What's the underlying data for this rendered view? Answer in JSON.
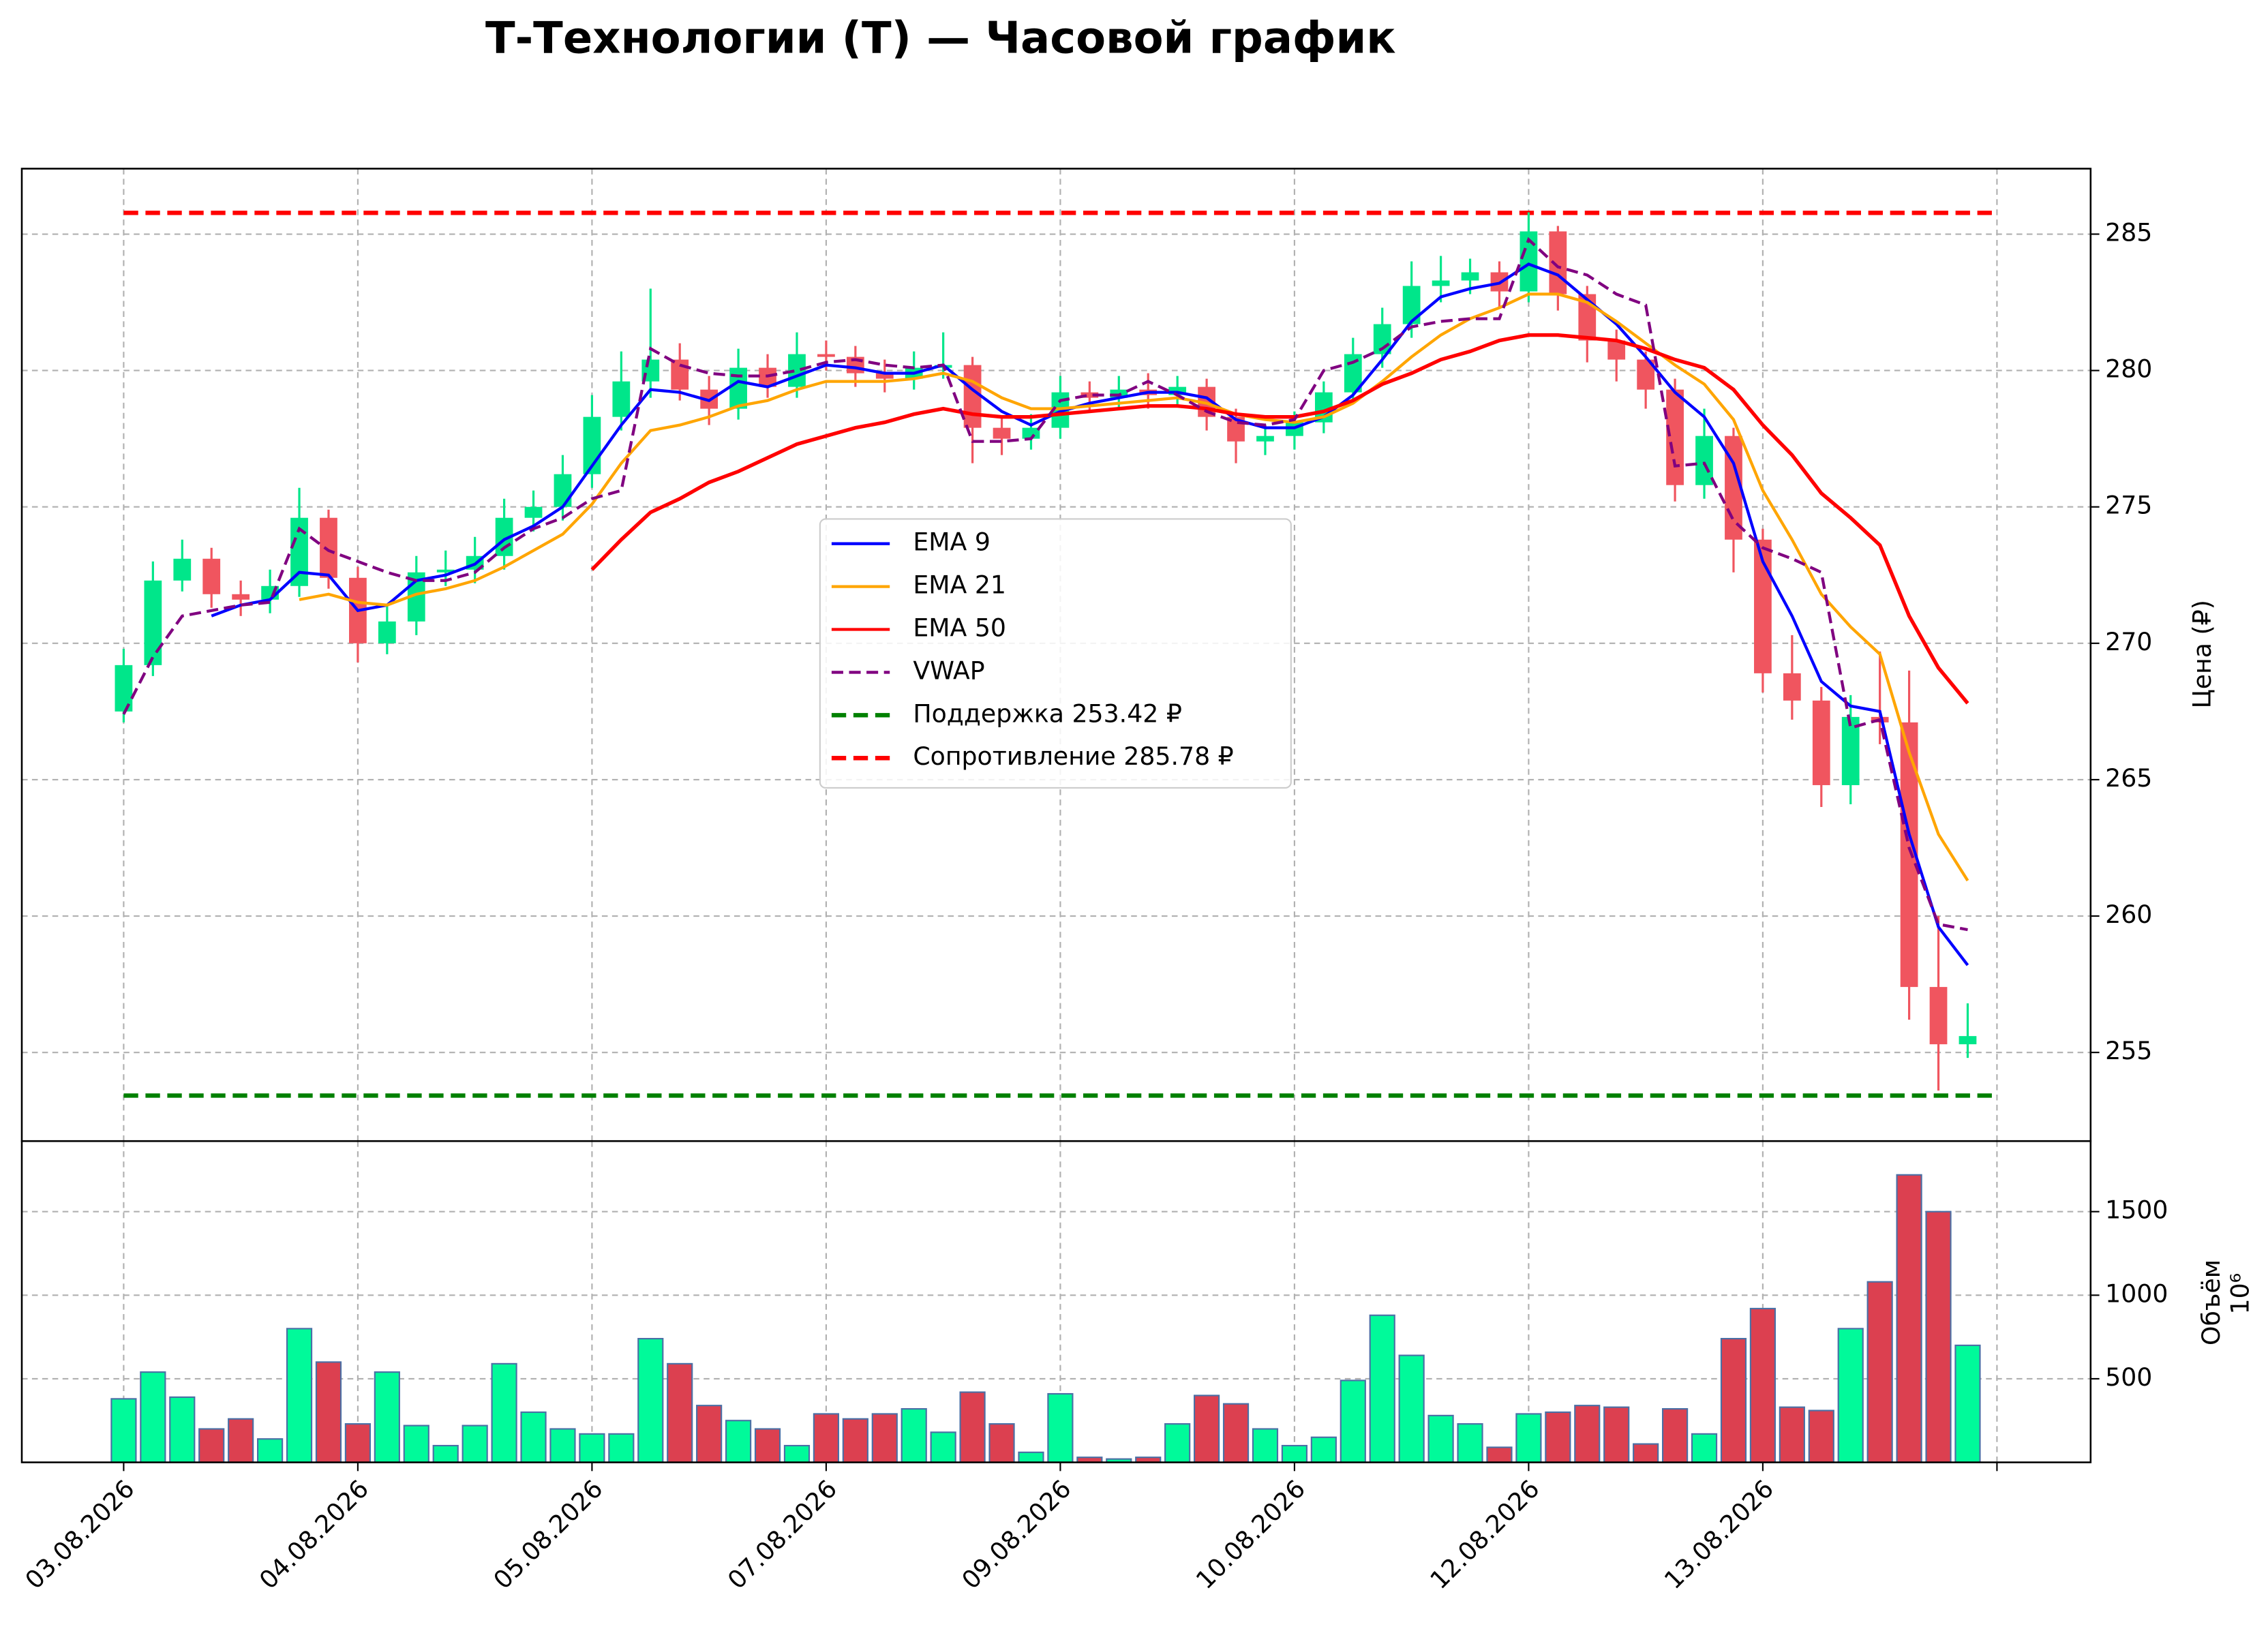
{
  "chart_data": [
    {
      "type": "candlestick",
      "title": "Т-Технологии (T) — Часовой график",
      "ylabel": "Цена (₽)",
      "up_color": "#00e68a",
      "down_color": "#f0555f",
      "grid": true,
      "legend": "center",
      "xlim": [
        -0.435,
        8.4
      ],
      "ylim": [
        251.75,
        287.4
      ],
      "yticks": [
        255,
        260,
        265,
        270,
        275,
        280,
        285
      ],
      "xticks": [
        {
          "value": 0,
          "label": "03.08.2026"
        },
        {
          "value": 1,
          "label": "04.08.2026"
        },
        {
          "value": 2,
          "label": "05.08.2026"
        },
        {
          "value": 3,
          "label": "07.08.2026"
        },
        {
          "value": 4,
          "label": "09.08.2026"
        },
        {
          "value": 5,
          "label": "10.08.2026"
        },
        {
          "value": 6,
          "label": "12.08.2026"
        },
        {
          "value": 7,
          "label": "13.08.2026"
        },
        {
          "value": 8,
          "label": null
        }
      ],
      "x": [
        0,
        0.125,
        0.25,
        0.375,
        0.5,
        0.625,
        0.75,
        0.875,
        1,
        1.125,
        1.25,
        1.375,
        1.5,
        1.625,
        1.75,
        1.875,
        2,
        2.125,
        2.25,
        2.375,
        2.5,
        2.625,
        2.75,
        2.875,
        3,
        3.125,
        3.25,
        3.375,
        3.5,
        3.625,
        3.75,
        3.875,
        4,
        4.125,
        4.25,
        4.375,
        4.5,
        4.625,
        4.75,
        4.875,
        5,
        5.125,
        5.25,
        5.375,
        5.5,
        5.625,
        5.75,
        5.875,
        6,
        6.125,
        6.25,
        6.375,
        6.5,
        6.625,
        6.75,
        6.875,
        7,
        7.125,
        7.25,
        7.375,
        7.5,
        7.625,
        7.75,
        7.875
      ],
      "open": [
        267.5,
        269.2,
        272.3,
        273.1,
        271.8,
        271.6,
        272.1,
        274.6,
        272.4,
        270.0,
        270.8,
        272.6,
        272.7,
        273.2,
        274.6,
        275.0,
        276.2,
        278.3,
        279.6,
        280.4,
        279.3,
        278.6,
        280.1,
        279.4,
        280.6,
        280.5,
        279.9,
        279.7,
        280.1,
        280.2,
        277.9,
        277.5,
        277.9,
        279.2,
        279.0,
        279.3,
        279.1,
        279.4,
        278.3,
        277.4,
        277.6,
        278.1,
        279.2,
        280.6,
        281.7,
        283.1,
        283.3,
        283.6,
        282.9,
        285.1,
        282.8,
        281.1,
        280.4,
        279.3,
        275.8,
        277.6,
        273.8,
        268.9,
        267.9,
        264.8,
        267.3,
        267.1,
        257.4,
        255.3
      ],
      "high": [
        269.8,
        273.0,
        273.8,
        273.5,
        272.3,
        272.7,
        275.7,
        274.9,
        272.8,
        271.4,
        273.2,
        273.4,
        273.9,
        275.3,
        275.6,
        276.9,
        279.1,
        280.7,
        283.0,
        281.0,
        279.8,
        280.8,
        280.6,
        281.4,
        281.1,
        280.9,
        280.4,
        280.7,
        281.4,
        280.5,
        278.3,
        278.4,
        279.8,
        279.6,
        279.8,
        279.9,
        279.8,
        279.7,
        278.6,
        278.0,
        278.5,
        279.6,
        281.2,
        282.3,
        284.0,
        284.2,
        284.1,
        284.0,
        285.8,
        285.3,
        283.1,
        281.5,
        280.7,
        279.7,
        278.6,
        277.9,
        274.2,
        270.3,
        268.4,
        268.1,
        269.7,
        269.0,
        260.0,
        256.8
      ],
      "low": [
        267.1,
        268.8,
        271.9,
        271.3,
        271.0,
        271.1,
        271.7,
        272.0,
        269.3,
        269.6,
        270.3,
        272.1,
        272.2,
        272.7,
        274.1,
        274.5,
        275.7,
        277.8,
        279.0,
        278.9,
        278.0,
        278.2,
        279.0,
        279.0,
        280.0,
        279.4,
        279.2,
        279.3,
        279.7,
        276.6,
        276.9,
        277.1,
        277.5,
        278.5,
        278.6,
        278.6,
        278.7,
        277.8,
        276.6,
        276.9,
        277.1,
        277.7,
        278.8,
        280.1,
        281.2,
        282.5,
        282.8,
        282.3,
        282.5,
        282.2,
        280.3,
        279.6,
        278.6,
        275.2,
        275.3,
        272.6,
        268.2,
        267.2,
        264.0,
        264.1,
        266.3,
        256.2,
        253.6,
        254.8
      ],
      "close": [
        269.2,
        272.3,
        273.1,
        271.8,
        271.6,
        272.1,
        274.6,
        272.4,
        270.0,
        270.8,
        272.6,
        272.7,
        273.2,
        274.6,
        275.0,
        276.2,
        278.3,
        279.6,
        280.4,
        279.3,
        278.6,
        280.1,
        279.4,
        280.6,
        280.5,
        279.9,
        279.7,
        280.1,
        280.2,
        277.9,
        277.5,
        277.9,
        279.2,
        279.0,
        279.3,
        279.1,
        279.4,
        278.3,
        277.4,
        277.6,
        278.1,
        279.2,
        280.6,
        281.7,
        283.1,
        283.3,
        283.6,
        282.9,
        285.1,
        282.8,
        281.1,
        280.4,
        279.3,
        275.8,
        277.6,
        273.8,
        268.9,
        267.9,
        264.8,
        267.3,
        267.1,
        257.4,
        255.3,
        255.6
      ],
      "series": [
        {
          "name": "EMA 9",
          "color": "#0000ff",
          "dash": false,
          "values": [
            null,
            null,
            null,
            271.0,
            271.4,
            271.6,
            272.6,
            272.5,
            271.2,
            271.4,
            272.3,
            272.5,
            272.9,
            273.8,
            274.3,
            275.0,
            276.5,
            278.0,
            279.3,
            279.2,
            278.9,
            279.6,
            279.4,
            279.8,
            280.2,
            280.1,
            279.9,
            279.9,
            280.2,
            279.3,
            278.5,
            278.0,
            278.5,
            278.8,
            279.0,
            279.2,
            279.2,
            279.0,
            278.2,
            277.9,
            277.9,
            278.3,
            279.1,
            280.4,
            281.8,
            282.7,
            283.0,
            283.2,
            283.9,
            283.5,
            282.6,
            281.7,
            280.5,
            279.2,
            278.3,
            276.6,
            273.0,
            271.0,
            268.6,
            267.7,
            267.5,
            263.0,
            259.6,
            258.2
          ]
        },
        {
          "name": "EMA 21",
          "color": "#ffa500",
          "dash": false,
          "values": [
            null,
            null,
            null,
            null,
            null,
            null,
            271.6,
            271.8,
            271.5,
            271.4,
            271.8,
            272.0,
            272.3,
            272.8,
            273.4,
            274.0,
            275.1,
            276.6,
            277.8,
            278.0,
            278.3,
            278.7,
            278.9,
            279.3,
            279.6,
            279.6,
            279.6,
            279.7,
            279.9,
            279.6,
            279.0,
            278.6,
            278.6,
            278.7,
            278.8,
            278.9,
            279.0,
            278.8,
            278.4,
            278.2,
            278.1,
            278.3,
            278.8,
            279.6,
            280.5,
            281.3,
            281.9,
            282.3,
            282.8,
            282.8,
            282.5,
            281.8,
            281.0,
            280.2,
            279.5,
            278.2,
            275.6,
            273.8,
            271.8,
            270.6,
            269.6,
            266.0,
            263.0,
            261.3
          ]
        },
        {
          "name": "EMA 50",
          "color": "#ff0000",
          "dash": false,
          "values": [
            null,
            null,
            null,
            null,
            null,
            null,
            null,
            null,
            null,
            null,
            null,
            null,
            null,
            null,
            null,
            null,
            272.7,
            273.8,
            274.8,
            275.3,
            275.9,
            276.3,
            276.8,
            277.3,
            277.6,
            277.9,
            278.1,
            278.4,
            278.6,
            278.4,
            278.3,
            278.3,
            278.4,
            278.5,
            278.6,
            278.7,
            278.7,
            278.6,
            278.4,
            278.3,
            278.3,
            278.5,
            278.9,
            279.5,
            279.9,
            280.4,
            280.7,
            281.1,
            281.3,
            281.3,
            281.2,
            281.1,
            280.8,
            280.4,
            280.1,
            279.3,
            278.0,
            276.9,
            275.5,
            274.6,
            273.6,
            271.0,
            269.1,
            267.8
          ]
        },
        {
          "name": "VWAP",
          "color": "#800080",
          "dash": true,
          "values": [
            267.4,
            269.5,
            271.0,
            271.2,
            271.4,
            271.5,
            274.2,
            273.4,
            273.0,
            272.6,
            272.3,
            272.3,
            272.6,
            273.5,
            274.2,
            274.6,
            275.3,
            275.6,
            280.8,
            280.2,
            279.9,
            279.8,
            279.8,
            280.0,
            280.3,
            280.4,
            280.2,
            280.1,
            280.2,
            277.4,
            277.4,
            277.5,
            278.9,
            279.1,
            279.1,
            279.6,
            279.1,
            278.5,
            278.1,
            278.0,
            278.2,
            280.0,
            280.3,
            280.8,
            281.6,
            281.8,
            281.9,
            281.9,
            284.8,
            283.8,
            283.5,
            282.8,
            282.4,
            276.5,
            276.6,
            274.5,
            273.5,
            273.1,
            272.6,
            266.9,
            267.2,
            262.5,
            259.7,
            259.5
          ]
        }
      ],
      "levels": [
        {
          "name": "Поддержка 253.42 ₽",
          "value": 253.42,
          "color": "#008000"
        },
        {
          "name": "Сопротивление 285.78 ₽",
          "value": 285.78,
          "color": "#ff0000"
        }
      ]
    },
    {
      "type": "bar",
      "ylabel": "Объём",
      "offset_label": "10⁶",
      "grid": true,
      "up_color": "#00fa9a",
      "down_color": "#dc4050",
      "edge_color": "#4a6fa5",
      "ylim": [
        0,
        1922
      ],
      "yticks": [
        500,
        1000,
        1500
      ],
      "values": [
        380,
        540,
        390,
        200,
        260,
        140,
        800,
        600,
        230,
        540,
        220,
        100,
        220,
        590,
        300,
        200,
        170,
        170,
        740,
        590,
        340,
        250,
        200,
        100,
        290,
        260,
        290,
        320,
        180,
        420,
        230,
        60,
        410,
        30,
        20,
        30,
        230,
        400,
        350,
        200,
        100,
        150,
        490,
        880,
        640,
        280,
        230,
        90,
        290,
        300,
        340,
        330,
        110,
        320,
        170,
        740,
        920,
        330,
        310,
        800,
        1080,
        1720,
        1500,
        700
      ]
    }
  ]
}
